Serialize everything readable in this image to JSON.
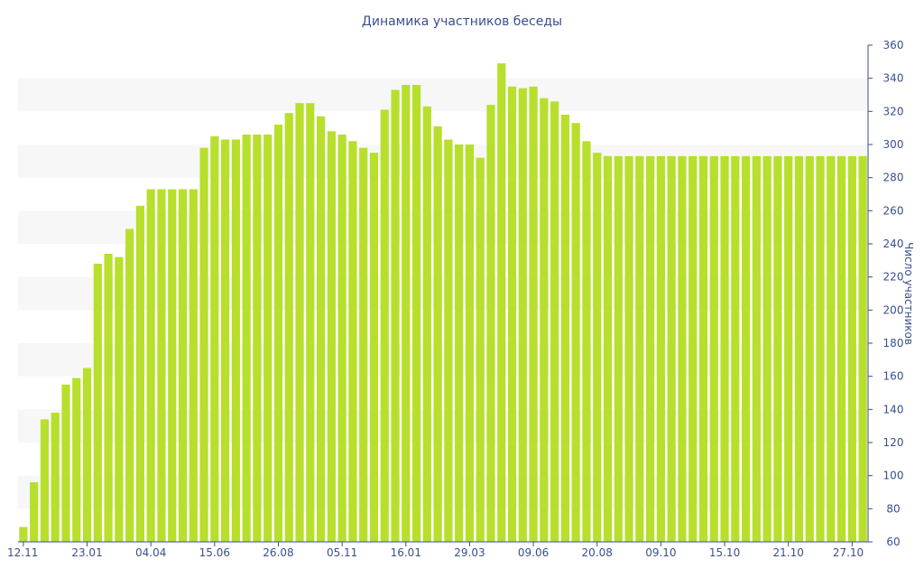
{
  "chart_data": {
    "type": "bar",
    "title": "Динамика участников беседы",
    "xlabel": "",
    "ylabel": "Число участников",
    "ylim": [
      60,
      360
    ],
    "y_ticks": [
      60,
      80,
      100,
      120,
      140,
      160,
      180,
      200,
      220,
      240,
      260,
      280,
      300,
      320,
      340,
      360
    ],
    "y_axis_position": "right",
    "grid": "alternating horizontal bands",
    "legend": "none",
    "x_tick_labels": [
      "12.11",
      "23.01",
      "04.04",
      "15.06",
      "26.08",
      "05.11",
      "16.01",
      "29.03",
      "09.06",
      "20.08",
      "09.10",
      "15.10",
      "21.10",
      "27.10"
    ],
    "x_tick_indices": [
      0,
      6,
      12,
      18,
      24,
      30,
      36,
      42,
      48,
      54,
      60,
      66,
      72,
      78
    ],
    "values": [
      69,
      96,
      134,
      138,
      155,
      159,
      165,
      228,
      234,
      232,
      249,
      263,
      273,
      273,
      273,
      273,
      273,
      298,
      305,
      303,
      303,
      306,
      306,
      306,
      312,
      319,
      325,
      325,
      317,
      308,
      306,
      302,
      298,
      295,
      321,
      333,
      336,
      336,
      323,
      311,
      303,
      300,
      300,
      292,
      324,
      349,
      335,
      334,
      335,
      328,
      326,
      318,
      313,
      302,
      295,
      293,
      293,
      293,
      293,
      293,
      293,
      293,
      293,
      293,
      293,
      293,
      293,
      293,
      293,
      293,
      293,
      293,
      293,
      293,
      293,
      293,
      293,
      293,
      293,
      293
    ],
    "colors": {
      "bar": "#b7df2c",
      "text": "#3a4f8f",
      "band": "#f7f7f7"
    }
  }
}
